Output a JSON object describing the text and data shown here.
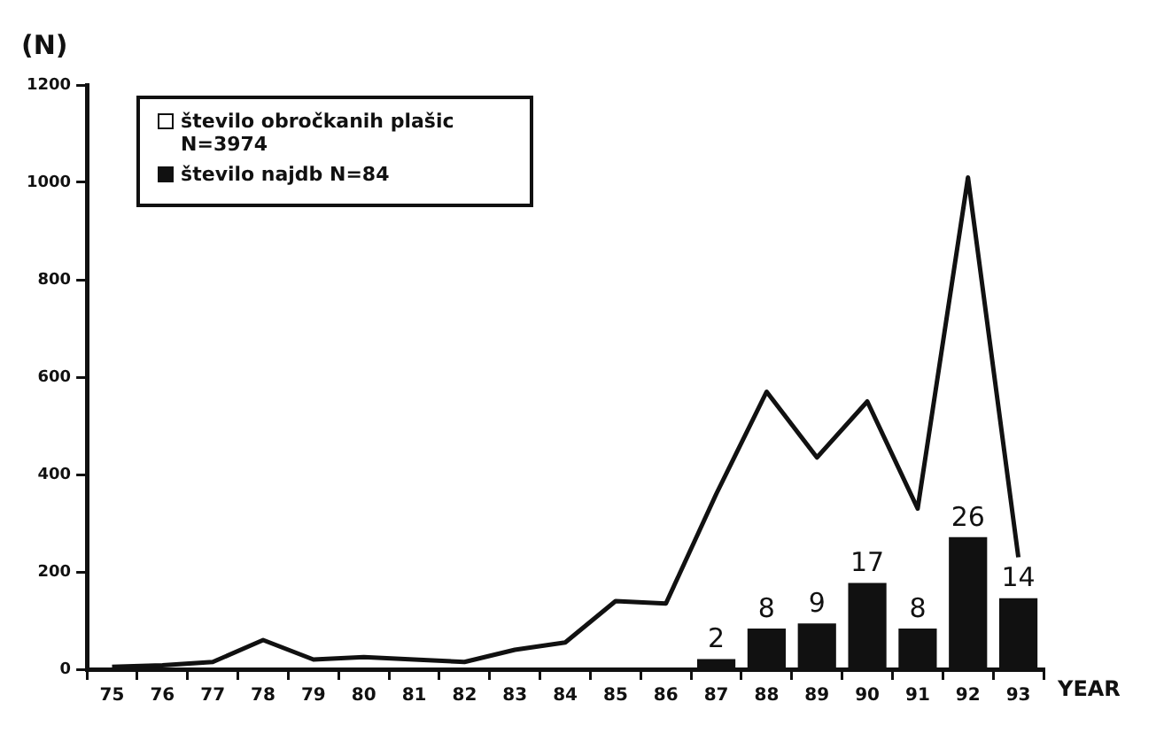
{
  "chart_data": {
    "type": "line",
    "ylabel": "(N)",
    "xlabel": "YEAR",
    "categories": [
      "75",
      "76",
      "77",
      "78",
      "79",
      "80",
      "81",
      "82",
      "83",
      "84",
      "85",
      "86",
      "87",
      "88",
      "89",
      "90",
      "91",
      "92",
      "93"
    ],
    "series": [
      {
        "name": "število obročkanih plašic N=3974",
        "color": "#111111",
        "values": [
          5,
          8,
          15,
          60,
          20,
          25,
          20,
          15,
          40,
          55,
          140,
          135,
          360,
          570,
          435,
          550,
          330,
          1010,
          230
        ]
      },
      {
        "name": "število najdb N=84",
        "type": "bar",
        "axis": "y2",
        "color": "#111111",
        "values": [
          null,
          null,
          null,
          null,
          null,
          null,
          null,
          null,
          null,
          null,
          null,
          null,
          2,
          8,
          9,
          17,
          8,
          26,
          14
        ],
        "value_labels": [
          null,
          null,
          null,
          null,
          null,
          null,
          null,
          null,
          null,
          null,
          null,
          null,
          "2",
          "8",
          "9",
          "17",
          "8",
          "26",
          "14"
        ]
      }
    ],
    "y2lim": [
      0,
      115
    ],
    "ylim": [
      0,
      1200
    ],
    "yticks": [
      0,
      200,
      400,
      600,
      800,
      1000,
      1200
    ],
    "grid": false,
    "legend": "top left",
    "marker": "none",
    "line_style": "solid"
  }
}
